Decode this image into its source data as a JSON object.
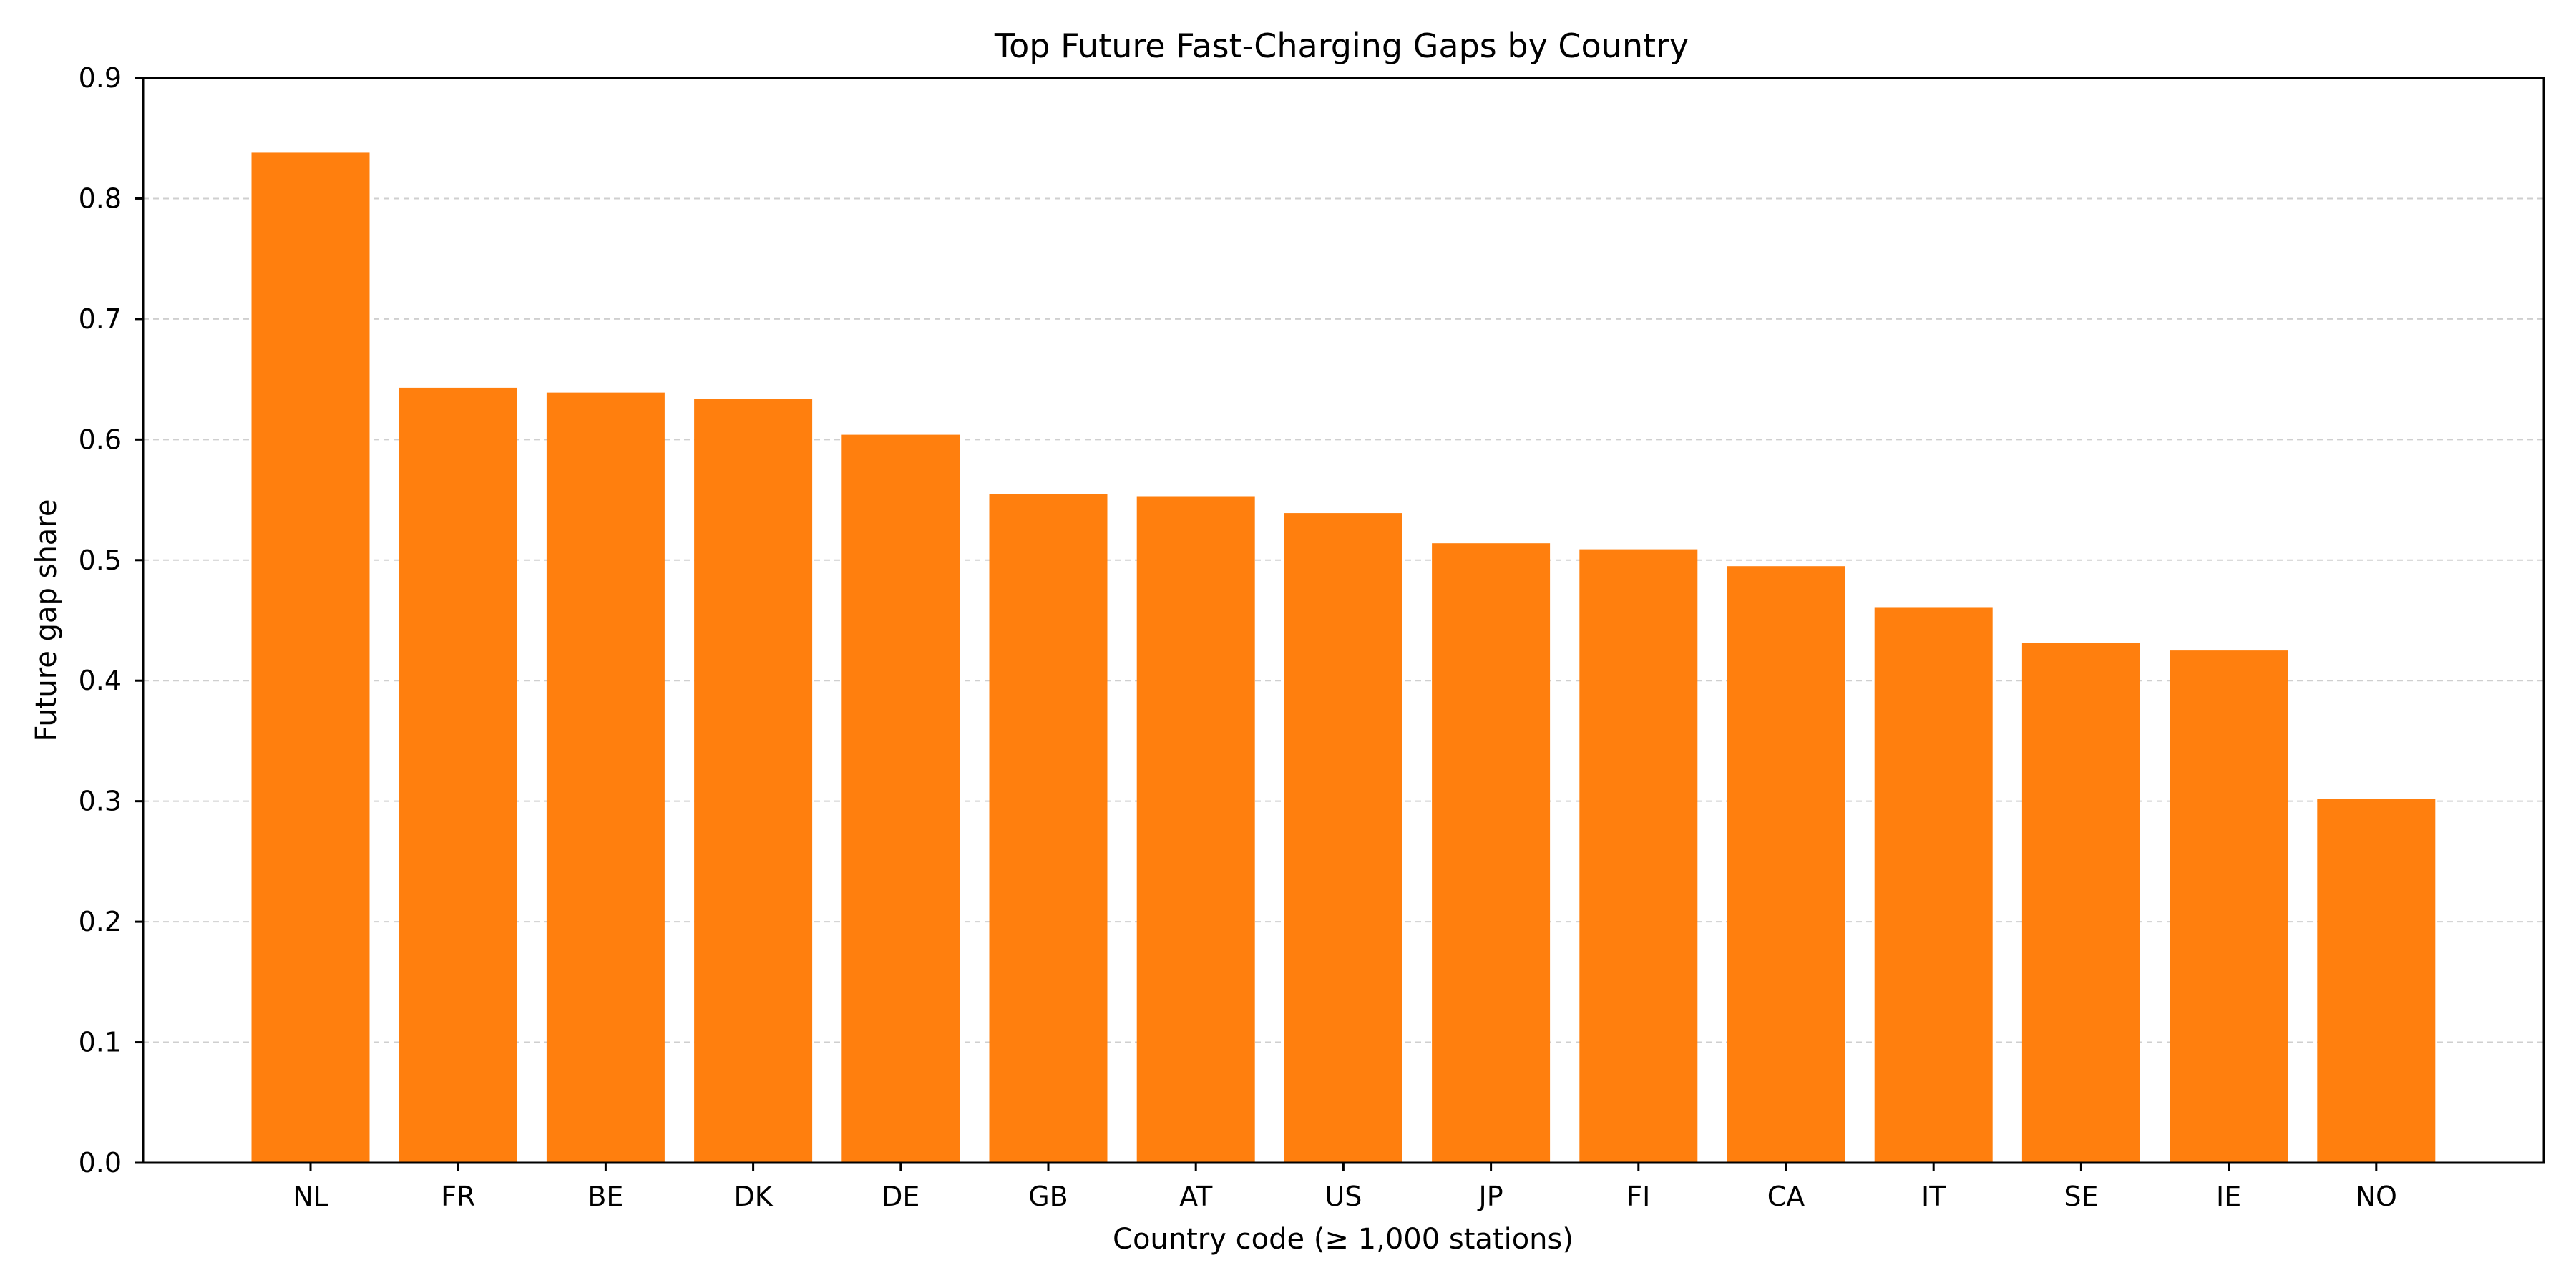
{
  "chart_data": {
    "type": "bar",
    "title": "Top Future Fast-Charging Gaps by Country",
    "xlabel": "Country code (≥ 1,000 stations)",
    "ylabel": "Future gap share",
    "categories": [
      "NL",
      "FR",
      "BE",
      "DK",
      "DE",
      "GB",
      "AT",
      "US",
      "JP",
      "FI",
      "CA",
      "IT",
      "SE",
      "IE",
      "NO"
    ],
    "values": [
      0.838,
      0.643,
      0.639,
      0.634,
      0.604,
      0.555,
      0.553,
      0.539,
      0.514,
      0.509,
      0.495,
      0.461,
      0.431,
      0.425,
      0.302
    ],
    "ylim": [
      0,
      0.9
    ],
    "yticks": [
      "0.0",
      "0.1",
      "0.2",
      "0.3",
      "0.4",
      "0.5",
      "0.6",
      "0.7",
      "0.8",
      "0.9"
    ],
    "grid": "y-dashed",
    "bar_color": "#ff7f0e"
  }
}
